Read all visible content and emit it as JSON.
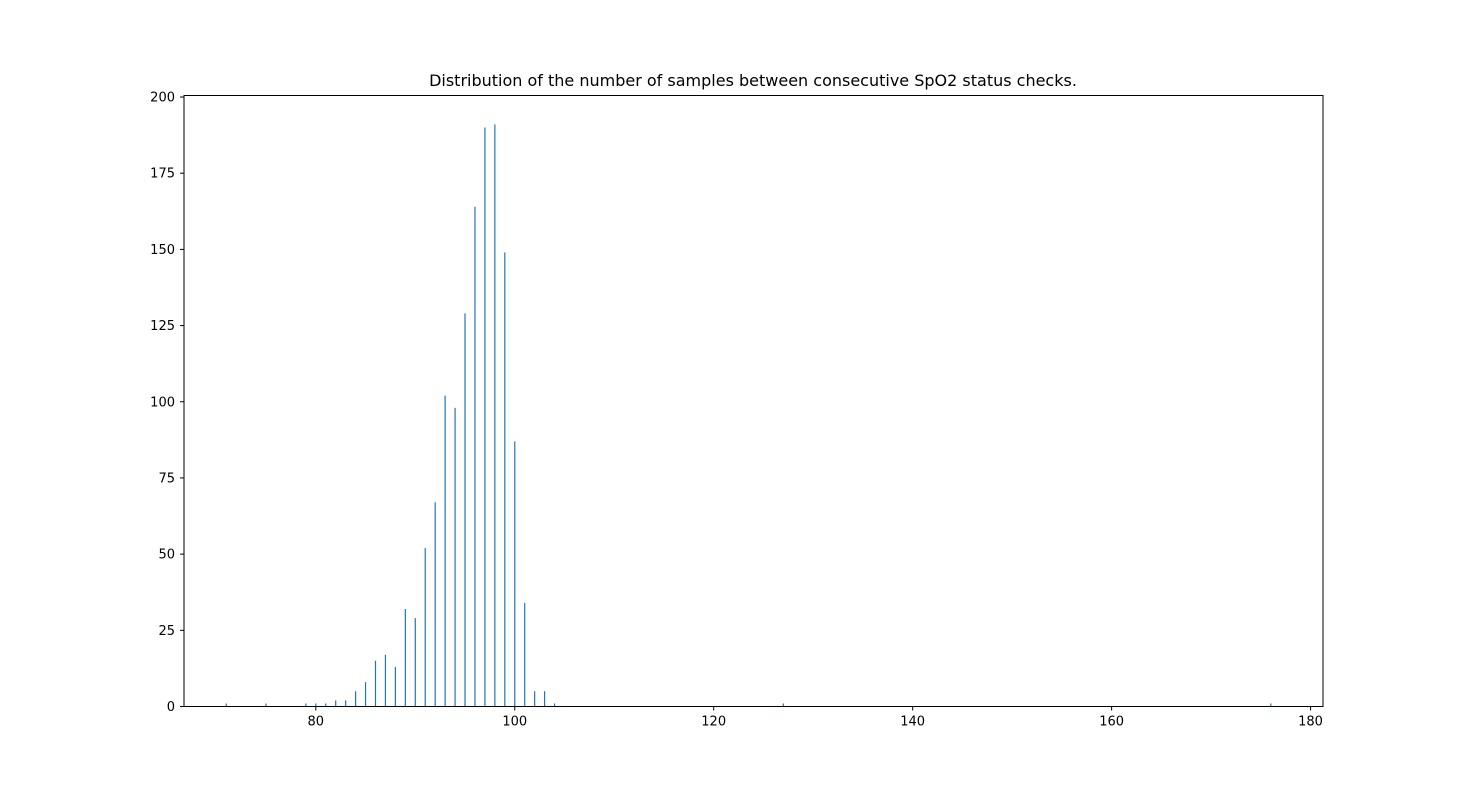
{
  "chart_data": {
    "type": "bar",
    "title": "Distribution of the number of samples between consecutive SpO2 status checks.",
    "xlabel": "",
    "ylabel": "",
    "xlim": [
      66.75,
      181.25
    ],
    "ylim": [
      0,
      200.5
    ],
    "xticks": [
      80,
      100,
      120,
      140,
      160,
      180
    ],
    "yticks": [
      0,
      25,
      50,
      75,
      100,
      125,
      150,
      175,
      200
    ],
    "grid": false,
    "bar_color": "#1f77b4",
    "series": [
      {
        "x": [
          71,
          75,
          79,
          80,
          81,
          82,
          83,
          84,
          85,
          86,
          87,
          88,
          89,
          90,
          91,
          92,
          93,
          94,
          95,
          96,
          97,
          98,
          99,
          100,
          101,
          102,
          103,
          104,
          127,
          176
        ],
        "values": [
          1,
          1,
          1,
          1,
          1,
          2,
          2,
          5,
          8,
          15,
          17,
          13,
          32,
          29,
          52,
          67,
          102,
          98,
          129,
          164,
          190,
          191,
          149,
          87,
          34,
          5,
          5,
          1,
          1,
          1
        ]
      }
    ]
  }
}
